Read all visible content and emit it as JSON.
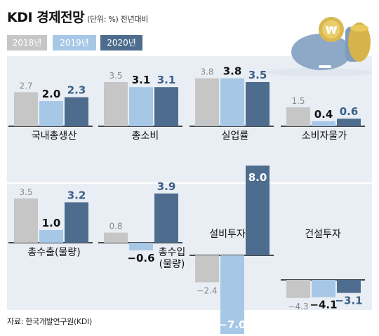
{
  "header": {
    "title": "KDI 경제전망",
    "unit_note": "(단위: %) 전년대비"
  },
  "source": "자료: 한국개발연구원(KDI)",
  "colors": {
    "2018년": "#c6c6c6",
    "2019년": "#a6c8e6",
    "2020년": "#4e6d8e",
    "panel_bg": "#e9eef4"
  },
  "icon": "piggy-bank-with-coins-icon",
  "chart_data": {
    "type": "bar",
    "series_names": [
      "2018년",
      "2019년",
      "2020년"
    ],
    "categories": [
      "국내총생산",
      "총소비",
      "실업률",
      "소비자물가",
      "총수출(물량)",
      "총수입 (물량)",
      "설비투자",
      "건설투자"
    ],
    "series": [
      {
        "name": "2018년",
        "values": [
          2.7,
          3.5,
          3.8,
          1.5,
          3.5,
          0.8,
          -2.4,
          -4.3
        ]
      },
      {
        "name": "2019년",
        "values": [
          2.0,
          3.1,
          3.8,
          0.4,
          1.0,
          -0.6,
          -7.0,
          -4.1
        ]
      },
      {
        "name": "2020년",
        "values": [
          2.3,
          3.1,
          3.5,
          0.6,
          3.2,
          3.9,
          8.0,
          -3.1
        ]
      }
    ],
    "value_labels": [
      [
        "2.7",
        "2.0",
        "2.3"
      ],
      [
        "3.5",
        "3.1",
        "3.1"
      ],
      [
        "3.8",
        "3.8",
        "3.5"
      ],
      [
        "1.5",
        "0.4",
        "0.6"
      ],
      [
        "3.5",
        "1.0",
        "3.2"
      ],
      [
        "0.8",
        "−0.6",
        "3.9"
      ],
      [
        "−2.4",
        "−7.0",
        "8.0"
      ],
      [
        "−4.3",
        "−4.1",
        "−3.1"
      ]
    ]
  }
}
